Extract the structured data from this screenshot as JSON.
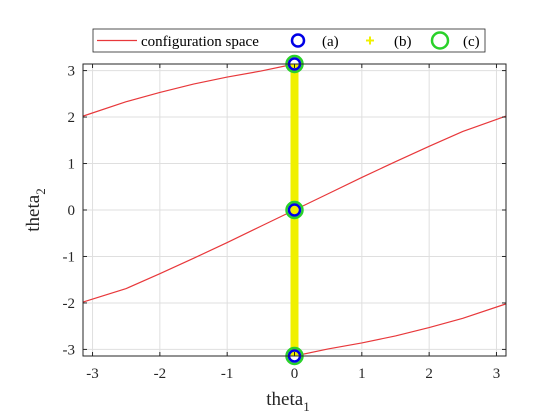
{
  "chart_data": {
    "type": "line",
    "title": "",
    "xlabel": "theta_1",
    "ylabel": "theta_2",
    "xlabel_main": "theta",
    "xlabel_sub": "1",
    "ylabel_main": "theta",
    "ylabel_sub": "2",
    "xlim": [
      -3.1416,
      3.1416
    ],
    "ylim": [
      -3.1416,
      3.1416
    ],
    "xticks": [
      -3,
      -2,
      -1,
      0,
      1,
      2,
      3
    ],
    "yticks": [
      -3,
      -2,
      -1,
      0,
      1,
      2,
      3
    ],
    "grid": true,
    "legend_position": "top, outside, horizontal",
    "series": [
      {
        "name": "configuration space",
        "kind": "line",
        "color": "#e8383b",
        "segments": [
          [
            [
              -3.1416,
              2.02
            ],
            [
              -2.5,
              2.33
            ],
            [
              -2.0,
              2.53
            ],
            [
              -1.5,
              2.71
            ],
            [
              -1.0,
              2.86
            ],
            [
              -0.5,
              2.99
            ],
            [
              0.0,
              3.1416
            ]
          ],
          [
            [
              -3.1416,
              -1.98
            ],
            [
              -2.5,
              -1.69
            ],
            [
              -2.0,
              -1.37
            ],
            [
              -1.5,
              -1.04
            ],
            [
              -1.0,
              -0.7
            ],
            [
              -0.5,
              -0.35
            ],
            [
              0.0,
              0.0
            ],
            [
              0.5,
              0.35
            ],
            [
              1.0,
              0.7
            ],
            [
              1.5,
              1.04
            ],
            [
              2.0,
              1.37
            ],
            [
              2.5,
              1.69
            ],
            [
              3.1416,
              2.02
            ]
          ],
          [
            [
              0.0,
              -3.1416
            ],
            [
              0.5,
              -2.99
            ],
            [
              1.0,
              -2.86
            ],
            [
              1.5,
              -2.71
            ],
            [
              2.0,
              -2.53
            ],
            [
              2.5,
              -2.33
            ],
            [
              3.1416,
              -2.02
            ]
          ]
        ]
      },
      {
        "name": "(a)",
        "kind": "marker",
        "marker": "circle",
        "color": "#0000e6",
        "points": [
          [
            0,
            3.1416
          ],
          [
            0,
            0
          ],
          [
            0,
            -3.1416
          ]
        ]
      },
      {
        "name": "(b)",
        "kind": "thick-line",
        "marker": "plus",
        "color": "#f0f000",
        "points": [
          [
            0,
            -3.1416
          ],
          [
            0,
            3.1416
          ]
        ]
      },
      {
        "name": "(c)",
        "kind": "marker",
        "marker": "circle",
        "color": "#2ad12a",
        "points": [
          [
            0,
            3.1416
          ],
          [
            0,
            0
          ],
          [
            0,
            -3.1416
          ]
        ]
      }
    ]
  }
}
